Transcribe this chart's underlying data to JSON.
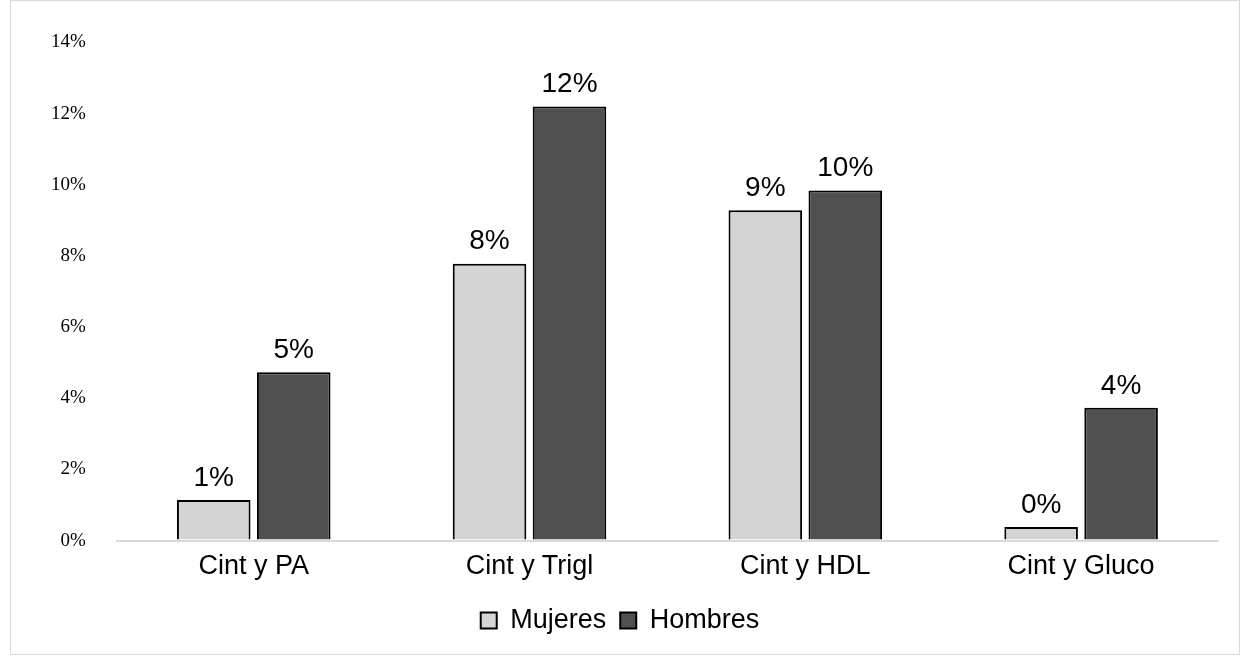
{
  "chart_data": {
    "type": "bar",
    "categories": [
      "Cint y PA",
      "Cint y Trigl",
      "Cint y HDL",
      "Cint y Gluco"
    ],
    "series": [
      {
        "name": "Mujeres",
        "color": "#d4d4d4",
        "values": [
          1.14,
          7.78,
          9.28,
          0.38
        ],
        "value_labels": [
          "1%",
          "8%",
          "9%",
          "0%"
        ]
      },
      {
        "name": "Hombres",
        "color": "#505050",
        "values": [
          4.73,
          12.2,
          9.84,
          3.73
        ],
        "value_labels": [
          "5%",
          "12%",
          "10%",
          "4%"
        ]
      }
    ],
    "ylim": [
      0,
      14
    ],
    "yticks": [
      {
        "value": 0,
        "label": "0%"
      },
      {
        "value": 2,
        "label": "2%"
      },
      {
        "value": 4,
        "label": "4%"
      },
      {
        "value": 6,
        "label": "6%"
      },
      {
        "value": 8,
        "label": "8%"
      },
      {
        "value": 10,
        "label": "10%"
      },
      {
        "value": 12,
        "label": "12%"
      },
      {
        "value": 14,
        "label": "14%"
      }
    ],
    "grid": false,
    "legend": "bottom"
  }
}
